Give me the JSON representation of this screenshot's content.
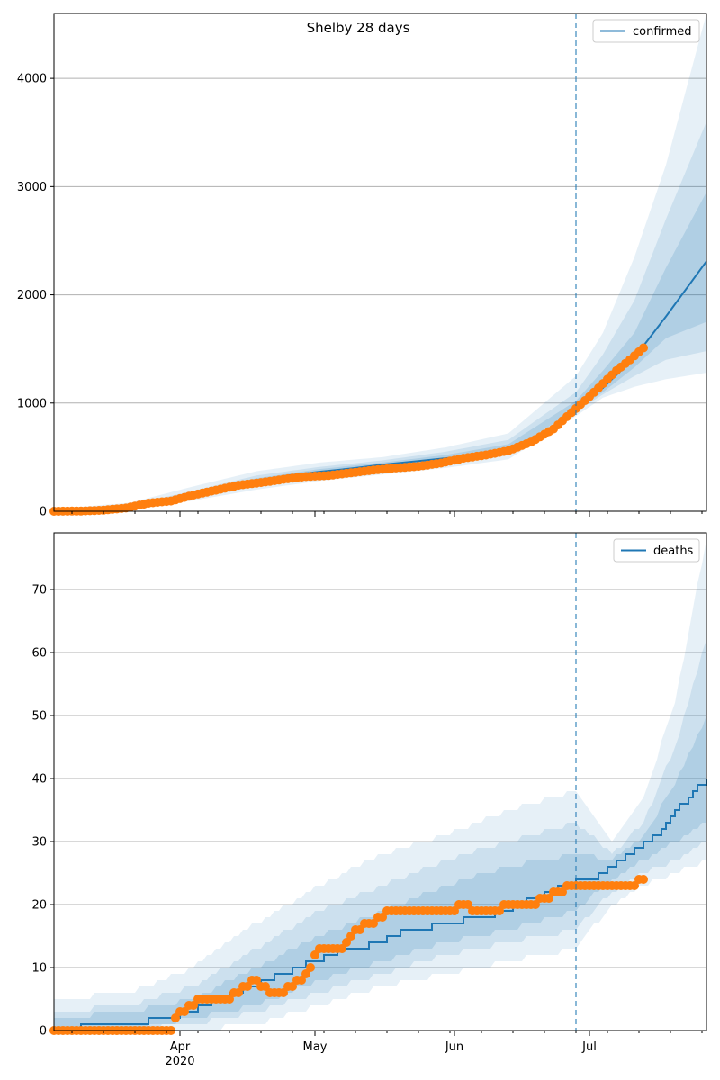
{
  "figure_title": "Shelby 28 days",
  "colors": {
    "model_line": "#1f77b4",
    "band_fill": "#1f77b4",
    "observed": "#ff7f0e",
    "forecast_marker": "#1f77b4",
    "grid": "#b0b0b0"
  },
  "x_axis": {
    "tick_labels": [
      "Apr",
      "May",
      "Jun",
      "Jul"
    ],
    "tick_label_dates": [
      "2020-04-01",
      "2020-05-01",
      "2020-06-01",
      "2020-07-01"
    ],
    "year_label": "2020",
    "range": [
      "2020-03-04",
      "2020-07-27"
    ],
    "forecast_start": "2020-06-28"
  },
  "chart_data": [
    {
      "type": "line",
      "legend": "confirmed",
      "legend_position": "top-right",
      "grid": "horizontal",
      "ylim": [
        0,
        4600
      ],
      "yticks": [
        0,
        1000,
        2000,
        3000,
        4000
      ],
      "model_median": {
        "x": [
          "2020-03-04",
          "2020-03-14",
          "2020-03-21",
          "2020-03-28",
          "2020-04-04",
          "2020-04-11",
          "2020-04-18",
          "2020-04-25",
          "2020-05-02",
          "2020-05-09",
          "2020-05-16",
          "2020-05-23",
          "2020-05-30",
          "2020-06-06",
          "2020-06-13",
          "2020-06-20",
          "2020-06-28",
          "2020-07-04",
          "2020-07-11",
          "2020-07-18",
          "2020-07-27"
        ],
        "y": [
          5,
          10,
          40,
          80,
          150,
          220,
          280,
          330,
          365,
          395,
          430,
          460,
          490,
          520,
          580,
          680,
          960,
          1140,
          1420,
          1800,
          2310
        ]
      },
      "bands": [
        {
          "label": "outer",
          "x": [
            "2020-03-04",
            "2020-03-21",
            "2020-04-04",
            "2020-04-18",
            "2020-05-02",
            "2020-05-16",
            "2020-05-30",
            "2020-06-13",
            "2020-06-28",
            "2020-07-04",
            "2020-07-11",
            "2020-07-18",
            "2020-07-27"
          ],
          "lower": [
            0,
            20,
            100,
            200,
            280,
            340,
            400,
            480,
            880,
            1050,
            1150,
            1220,
            1280
          ],
          "upper": [
            20,
            80,
            230,
            370,
            450,
            500,
            590,
            720,
            1250,
            1650,
            2350,
            3200,
            4600
          ]
        },
        {
          "label": "middle",
          "x": [
            "2020-03-04",
            "2020-03-21",
            "2020-04-04",
            "2020-04-18",
            "2020-05-02",
            "2020-05-16",
            "2020-05-30",
            "2020-06-13",
            "2020-06-28",
            "2020-07-04",
            "2020-07-11",
            "2020-07-18",
            "2020-07-27"
          ],
          "lower": [
            0,
            30,
            120,
            230,
            310,
            370,
            430,
            520,
            920,
            1080,
            1250,
            1400,
            1480
          ],
          "upper": [
            15,
            60,
            190,
            330,
            410,
            470,
            550,
            660,
            1100,
            1450,
            1950,
            2700,
            3600
          ]
        },
        {
          "label": "inner",
          "x": [
            "2020-03-04",
            "2020-03-21",
            "2020-04-04",
            "2020-04-18",
            "2020-05-02",
            "2020-05-16",
            "2020-05-30",
            "2020-06-13",
            "2020-06-28",
            "2020-07-04",
            "2020-07-11",
            "2020-07-18",
            "2020-07-27"
          ],
          "lower": [
            2,
            35,
            135,
            255,
            335,
            400,
            460,
            550,
            940,
            1100,
            1330,
            1600,
            1750
          ],
          "upper": [
            10,
            50,
            170,
            305,
            390,
            450,
            520,
            620,
            1020,
            1300,
            1650,
            2250,
            2950
          ]
        }
      ],
      "observed": {
        "x": [
          "2020-03-04",
          "2020-03-10",
          "2020-03-15",
          "2020-03-20",
          "2020-03-25",
          "2020-03-30",
          "2020-04-04",
          "2020-04-09",
          "2020-04-14",
          "2020-04-19",
          "2020-04-24",
          "2020-04-29",
          "2020-05-04",
          "2020-05-09",
          "2020-05-14",
          "2020-05-19",
          "2020-05-24",
          "2020-05-29",
          "2020-06-03",
          "2020-06-08",
          "2020-06-13",
          "2020-06-18",
          "2020-06-23",
          "2020-06-28",
          "2020-07-01",
          "2020-07-04",
          "2020-07-07",
          "2020-07-10",
          "2020-07-13"
        ],
        "y": [
          0,
          2,
          10,
          30,
          75,
          95,
          150,
          195,
          240,
          265,
          295,
          320,
          330,
          355,
          380,
          400,
          415,
          445,
          490,
          520,
          560,
          640,
          760,
          950,
          1060,
          1180,
          1300,
          1400,
          1510
        ]
      }
    },
    {
      "type": "line",
      "legend": "deaths",
      "legend_position": "top-right",
      "grid": "horizontal",
      "ylim": [
        0,
        79
      ],
      "yticks": [
        0,
        10,
        20,
        30,
        40,
        50,
        60,
        70
      ],
      "model_median": {
        "x": [
          "2020-03-04",
          "2020-03-10",
          "2020-03-25",
          "2020-04-01",
          "2020-04-08",
          "2020-04-15",
          "2020-04-22",
          "2020-04-29",
          "2020-05-06",
          "2020-05-13",
          "2020-05-20",
          "2020-05-27",
          "2020-06-03",
          "2020-06-10",
          "2020-06-17",
          "2020-06-24",
          "2020-06-28",
          "2020-07-03",
          "2020-07-09",
          "2020-07-15",
          "2020-07-21",
          "2020-07-27"
        ],
        "y": [
          0,
          1,
          2,
          3,
          5,
          7,
          9,
          11,
          13,
          14,
          16,
          17,
          18,
          19,
          21,
          23,
          24,
          25,
          28,
          31,
          36,
          40.5
        ]
      },
      "bands": [
        {
          "label": "outer",
          "x": [
            "2020-03-04",
            "2020-03-21",
            "2020-04-04",
            "2020-04-18",
            "2020-05-02",
            "2020-05-16",
            "2020-05-30",
            "2020-06-13",
            "2020-06-28",
            "2020-07-06",
            "2020-07-13",
            "2020-07-20",
            "2020-07-27"
          ],
          "lower": [
            0,
            0,
            0,
            1,
            4,
            7,
            9,
            11,
            13,
            20,
            23,
            25,
            27
          ],
          "upper": [
            5,
            6,
            10,
            17,
            23,
            28,
            31,
            35,
            38,
            30,
            37,
            52,
            78
          ]
        },
        {
          "label": "middle",
          "x": [
            "2020-03-04",
            "2020-03-21",
            "2020-04-04",
            "2020-04-18",
            "2020-05-02",
            "2020-05-16",
            "2020-05-30",
            "2020-06-13",
            "2020-06-28",
            "2020-07-06",
            "2020-07-13",
            "2020-07-20",
            "2020-07-27"
          ],
          "lower": [
            0,
            0,
            1,
            3,
            6,
            9,
            12,
            14,
            16,
            22,
            25,
            27,
            30
          ],
          "upper": [
            3,
            4,
            7,
            13,
            19,
            23,
            27,
            30,
            33,
            28,
            33,
            45,
            62
          ]
        },
        {
          "label": "inner",
          "x": [
            "2020-03-04",
            "2020-03-21",
            "2020-04-04",
            "2020-04-18",
            "2020-05-02",
            "2020-05-16",
            "2020-05-30",
            "2020-06-13",
            "2020-06-28",
            "2020-07-06",
            "2020-07-13",
            "2020-07-20",
            "2020-07-27"
          ],
          "lower": [
            0,
            0,
            2,
            4,
            8,
            11,
            14,
            16,
            19,
            24,
            27,
            30,
            33
          ],
          "upper": [
            2,
            3,
            5,
            10,
            15,
            19,
            23,
            26,
            28,
            27,
            31,
            39,
            50
          ]
        }
      ],
      "observed": {
        "x": [
          "2020-03-04",
          "2020-03-30",
          "2020-03-31",
          "2020-04-02",
          "2020-04-05",
          "2020-04-08",
          "2020-04-12",
          "2020-04-16",
          "2020-04-18",
          "2020-04-21",
          "2020-04-23",
          "2020-04-26",
          "2020-04-29",
          "2020-05-02",
          "2020-05-07",
          "2020-05-10",
          "2020-05-14",
          "2020-05-17",
          "2020-05-24",
          "2020-05-31",
          "2020-06-03",
          "2020-06-06",
          "2020-06-10",
          "2020-06-14",
          "2020-06-18",
          "2020-06-22",
          "2020-06-24",
          "2020-06-28",
          "2020-07-02",
          "2020-07-06",
          "2020-07-10",
          "2020-07-13"
        ],
        "y": [
          0,
          0,
          2,
          3,
          5,
          5,
          5,
          7,
          8,
          6,
          6,
          7,
          9,
          13,
          13,
          16,
          17,
          19,
          19,
          19,
          20,
          19,
          19,
          20,
          20,
          21,
          22,
          23,
          23,
          23,
          23,
          24
        ]
      }
    }
  ]
}
